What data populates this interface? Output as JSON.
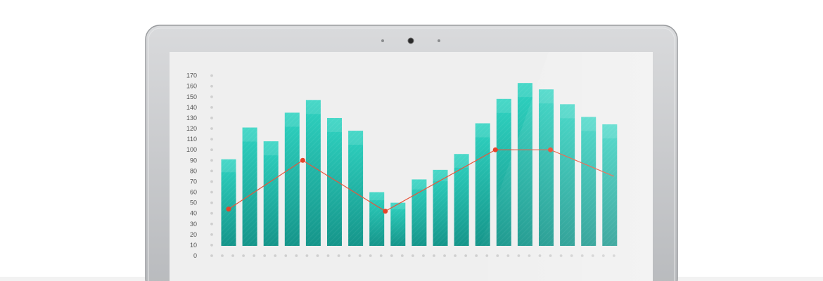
{
  "colors": {
    "bar_light": "#2fd3c1",
    "bar_dark": "#15958a",
    "line": "#e8553c",
    "marker": "#e8442a",
    "screen_bg": "#efefef",
    "bezel": "#c4c6c8",
    "grid_dot": "#cfcfcf",
    "axis_text": "#555555"
  },
  "icons": [
    "webcam-icon"
  ],
  "chart_data": {
    "type": "bar",
    "title": "",
    "xlabel": "",
    "ylabel": "",
    "ylim": [
      0,
      170
    ],
    "yticks": [
      0,
      10,
      20,
      30,
      40,
      50,
      60,
      70,
      80,
      90,
      100,
      110,
      120,
      130,
      140,
      150,
      160,
      170
    ],
    "yticks_text": [
      "0",
      "10",
      "20",
      "30",
      "40",
      "50",
      "60",
      "70",
      "80",
      "90",
      "100",
      "110",
      "120",
      "130",
      "140",
      "150",
      "160",
      "170"
    ],
    "grid": "dotted",
    "series": [
      {
        "type": "bar",
        "values": [
          91,
          121,
          108,
          135,
          147,
          130,
          118,
          60,
          50,
          72,
          81,
          96,
          125,
          148,
          163,
          157,
          143,
          131,
          124
        ]
      },
      {
        "type": "line",
        "values": [
          44,
          90,
          42,
          100,
          100,
          75
        ],
        "marker_indices": [
          0,
          1,
          2,
          3,
          4
        ]
      }
    ],
    "line_x_positions": [
      0.4,
      3.9,
      7.8,
      13.0,
      15.6,
      18.6
    ]
  }
}
